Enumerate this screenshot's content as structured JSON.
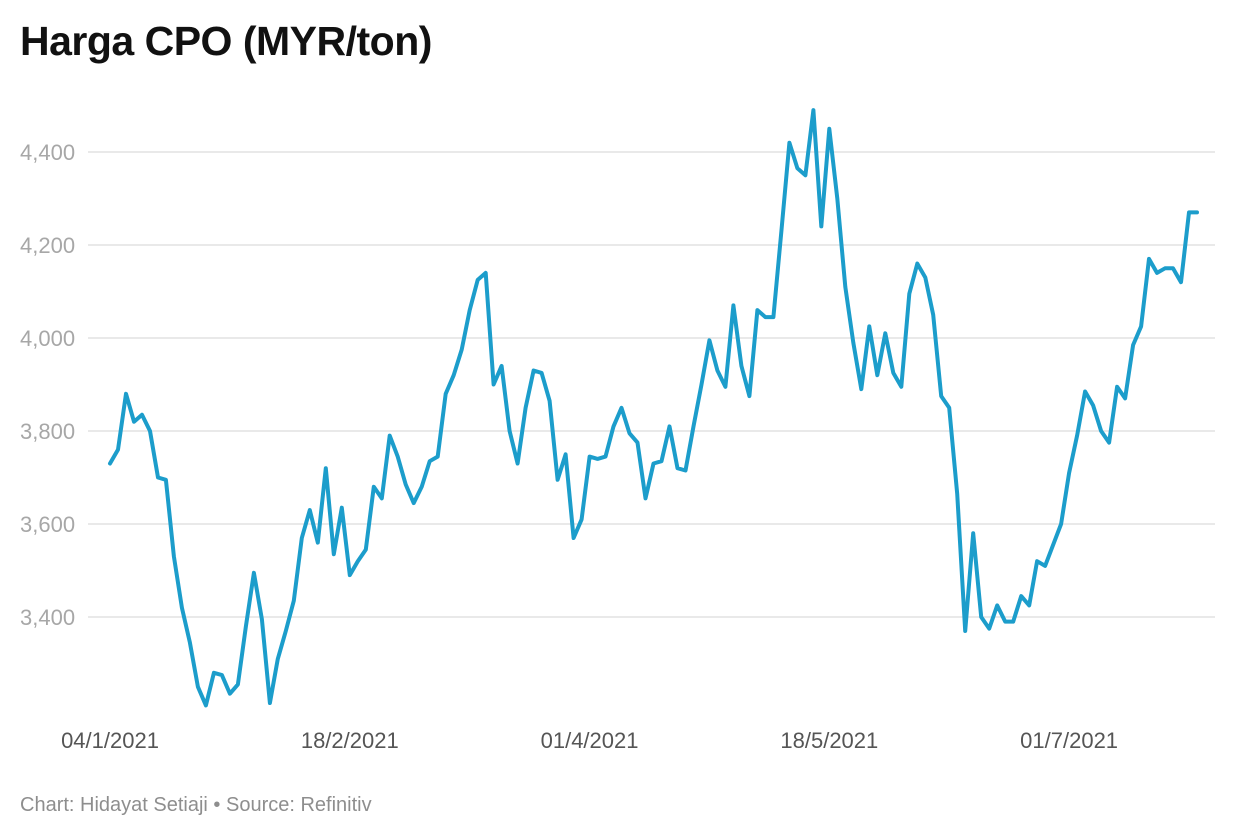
{
  "chart_data": {
    "type": "line",
    "title": "Harga CPO (MYR/ton)",
    "source": "Chart: Hidayat Setiaji • Source: Refinitiv",
    "xlabel": "",
    "ylabel": "",
    "ylim": [
      3200,
      4500
    ],
    "y_ticks": [
      3400,
      3600,
      3800,
      4000,
      4200,
      4400
    ],
    "y_tick_labels": [
      "3,400",
      "3,600",
      "3,800",
      "4,000",
      "4,200",
      "4,400"
    ],
    "x_tick_labels": [
      "04/1/2021",
      "18/2/2021",
      "01/4/2021",
      "18/5/2021",
      "01/7/2021"
    ],
    "x_tick_index": [
      0,
      30,
      60,
      90,
      120
    ],
    "grid": true,
    "series": [
      {
        "color": "#1c9dcb",
        "values": [
          3730,
          3760,
          3880,
          3820,
          3835,
          3800,
          3700,
          3695,
          3530,
          3420,
          3345,
          3250,
          3210,
          3280,
          3275,
          3235,
          3255,
          3380,
          3495,
          3395,
          3215,
          3310,
          3370,
          3435,
          3570,
          3630,
          3560,
          3720,
          3535,
          3635,
          3490,
          3520,
          3545,
          3680,
          3655,
          3790,
          3745,
          3685,
          3645,
          3680,
          3735,
          3745,
          3880,
          3920,
          3975,
          4060,
          4125,
          4140,
          3900,
          3940,
          3800,
          3730,
          3850,
          3930,
          3925,
          3865,
          3695,
          3750,
          3570,
          3610,
          3745,
          3740,
          3745,
          3810,
          3850,
          3795,
          3775,
          3655,
          3730,
          3735,
          3810,
          3720,
          3715,
          3810,
          3900,
          3995,
          3930,
          3895,
          4070,
          3940,
          3875,
          4060,
          4045,
          4045,
          4230,
          4420,
          4365,
          4350,
          4490,
          4240,
          4450,
          4300,
          4110,
          3990,
          3890,
          4025,
          3920,
          4010,
          3925,
          3895,
          4095,
          4160,
          4130,
          4050,
          3875,
          3850,
          3665,
          3370,
          3580,
          3400,
          3375,
          3425,
          3390,
          3390,
          3445,
          3425,
          3520,
          3510,
          3555,
          3600,
          3710,
          3790,
          3885,
          3855,
          3800,
          3775,
          3895,
          3870,
          3985,
          4025,
          4170,
          4140,
          4150,
          4150,
          4120,
          4270,
          4270
        ]
      }
    ]
  }
}
